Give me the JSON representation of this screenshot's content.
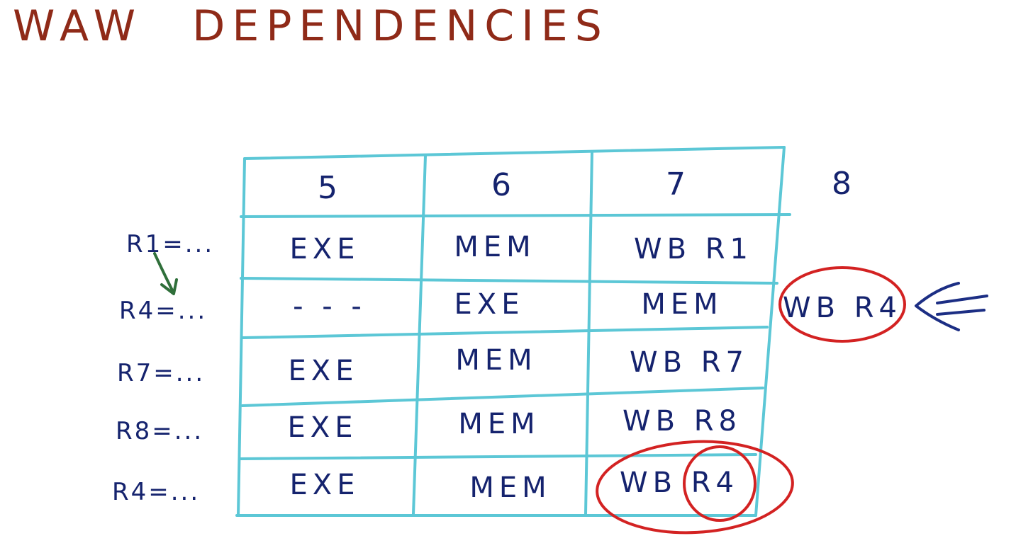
{
  "title": {
    "word1": "WAW",
    "word2": "DEPENDENCIES"
  },
  "table": {
    "columns": [
      "5",
      "6",
      "7",
      "8"
    ],
    "rows": [
      {
        "instr": "R1=...",
        "cells": [
          "EXE",
          "MEM",
          "WB R1"
        ]
      },
      {
        "instr": "R4=...",
        "cells": [
          "- - -",
          "EXE",
          "MEM"
        ]
      },
      {
        "instr": "R7=...",
        "cells": [
          "EXE",
          "MEM",
          "WB R7"
        ]
      },
      {
        "instr": "R8=...",
        "cells": [
          "EXE",
          "MEM",
          "WB R8"
        ]
      },
      {
        "instr": "R4=...",
        "cells": [
          "EXE",
          "MEM",
          "WB R4"
        ]
      }
    ]
  },
  "highlight": {
    "delayed_writeback": "WB R4",
    "last_writeback_register": "R4"
  },
  "colors": {
    "title_ink": "#8f2a18",
    "text_ink": "#15236e",
    "grid": "#5cc7d6",
    "circle": "#d32222",
    "dependency_arrow": "#2f6f3a"
  }
}
